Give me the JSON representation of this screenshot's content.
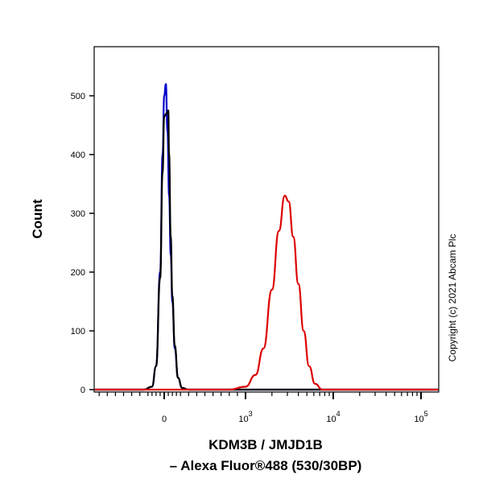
{
  "chart_data": {
    "type": "line",
    "subtype": "flow cytometry histogram",
    "xlabel_line1": "KDM3B / JMJD1B",
    "xlabel_line2": "– Alexa Fluor®488 (530/30BP)",
    "ylabel": "Count",
    "xscale": "biexponential",
    "xlim": [
      -870,
      200000
    ],
    "ylim": [
      0,
      580
    ],
    "x_ticks": [
      {
        "value": 0,
        "base": "0",
        "exp": ""
      },
      {
        "value": 1000,
        "base": "10",
        "exp": "3"
      },
      {
        "value": 10000,
        "base": "10",
        "exp": "4"
      },
      {
        "value": 100000,
        "base": "10",
        "exp": "5"
      }
    ],
    "y_ticks": [
      0,
      100,
      200,
      300,
      400,
      500
    ],
    "grid": false,
    "legend": "none",
    "series": [
      {
        "color": "#0000cc",
        "points": [
          [
            -870,
            0
          ],
          [
            -250,
            0
          ],
          [
            -150,
            5
          ],
          [
            -100,
            40
          ],
          [
            -50,
            200
          ],
          [
            -20,
            400
          ],
          [
            0,
            500
          ],
          [
            20,
            520
          ],
          [
            40,
            440
          ],
          [
            60,
            330
          ],
          [
            80,
            230
          ],
          [
            100,
            150
          ],
          [
            130,
            70
          ],
          [
            170,
            20
          ],
          [
            220,
            3
          ],
          [
            300,
            0
          ],
          [
            200000,
            0
          ]
        ]
      },
      {
        "color": "#000000",
        "points": [
          [
            -870,
            0
          ],
          [
            -250,
            0
          ],
          [
            -150,
            5
          ],
          [
            -100,
            40
          ],
          [
            -50,
            190
          ],
          [
            -20,
            370
          ],
          [
            0,
            465
          ],
          [
            30,
            470
          ],
          [
            50,
            475
          ],
          [
            60,
            400
          ],
          [
            80,
            260
          ],
          [
            100,
            160
          ],
          [
            130,
            75
          ],
          [
            170,
            20
          ],
          [
            220,
            3
          ],
          [
            300,
            0
          ],
          [
            200000,
            0
          ]
        ]
      },
      {
        "color": "#dd0000",
        "points": [
          [
            -870,
            0
          ],
          [
            800,
            0
          ],
          [
            1000,
            5
          ],
          [
            1300,
            25
          ],
          [
            1600,
            70
          ],
          [
            2000,
            170
          ],
          [
            2400,
            270
          ],
          [
            2800,
            330
          ],
          [
            3100,
            320
          ],
          [
            3500,
            260
          ],
          [
            4000,
            180
          ],
          [
            4600,
            100
          ],
          [
            5300,
            40
          ],
          [
            6200,
            10
          ],
          [
            7500,
            0
          ],
          [
            200000,
            0
          ]
        ]
      }
    ]
  },
  "copyright": "Copyright (c) 2021 Abcam Plc"
}
